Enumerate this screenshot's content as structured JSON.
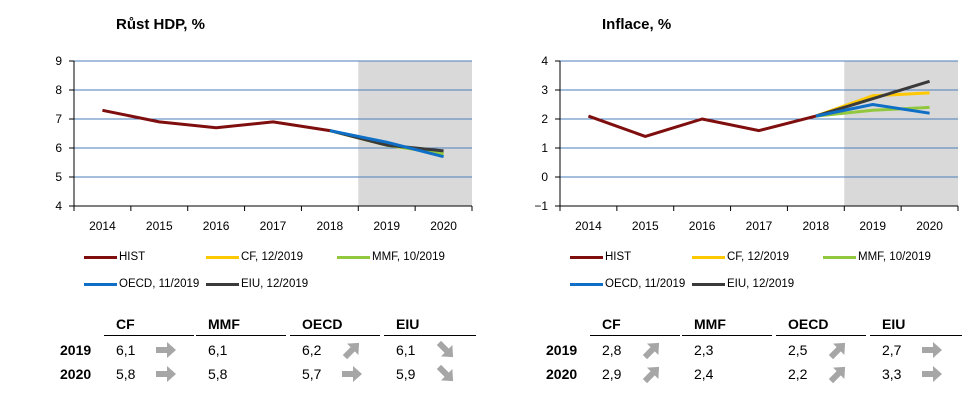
{
  "panels": [
    {
      "title": "Růst HDP, %",
      "table": {
        "columns": [
          "CF",
          "MMF",
          "OECD",
          "EIU"
        ],
        "rows": [
          {
            "label": "2019",
            "values": [
              "6,1",
              "6,1",
              "6,2",
              "6,1"
            ],
            "arrows": [
              "right",
              "none",
              "up",
              "down"
            ]
          },
          {
            "label": "2020",
            "values": [
              "5,8",
              "5,8",
              "5,7",
              "5,9"
            ],
            "arrows": [
              "right",
              "none",
              "right",
              "down"
            ]
          }
        ]
      }
    },
    {
      "title": "Inflace, %",
      "table": {
        "columns": [
          "CF",
          "MMF",
          "OECD",
          "EIU"
        ],
        "rows": [
          {
            "label": "2019",
            "values": [
              "2,8",
              "2,3",
              "2,5",
              "2,7"
            ],
            "arrows": [
              "up",
              "none",
              "up",
              "right"
            ]
          },
          {
            "label": "2020",
            "values": [
              "2,9",
              "2,4",
              "2,2",
              "3,3"
            ],
            "arrows": [
              "up",
              "none",
              "up",
              "right"
            ]
          }
        ]
      }
    }
  ],
  "colors": {
    "HIST": "#7f0e0e",
    "CF": "#ffc800",
    "MMF": "#92c83e",
    "OECD": "#0f6fc6",
    "EIU": "#3a3a3a",
    "forecast_shade": "#d9d9d9",
    "grid": "#4a7ebb",
    "arrow": "#a6a6a6"
  },
  "chart_data": [
    {
      "type": "line",
      "title": "Růst HDP, %",
      "x": [
        "2014",
        "2015",
        "2016",
        "2017",
        "2018",
        "2019",
        "2020"
      ],
      "ylim": [
        4,
        9
      ],
      "yticks": [
        4,
        5,
        6,
        7,
        8,
        9
      ],
      "grid": true,
      "legend": "bottom",
      "forecast_shade": [
        "2019",
        "2020"
      ],
      "series": [
        {
          "name": "HIST",
          "values": [
            7.3,
            6.9,
            6.7,
            6.9,
            6.6,
            null,
            null
          ]
        },
        {
          "name": "CF, 12/2019",
          "values": [
            null,
            null,
            null,
            null,
            6.6,
            6.1,
            5.8
          ]
        },
        {
          "name": "MMF, 10/2019",
          "values": [
            null,
            null,
            null,
            null,
            6.6,
            6.1,
            5.8
          ]
        },
        {
          "name": "OECD, 11/2019",
          "values": [
            null,
            null,
            null,
            null,
            6.6,
            6.2,
            5.7
          ]
        },
        {
          "name": "EIU, 12/2019",
          "values": [
            null,
            null,
            null,
            null,
            6.6,
            6.1,
            5.9
          ]
        }
      ]
    },
    {
      "type": "line",
      "title": "Inflace, %",
      "x": [
        "2014",
        "2015",
        "2016",
        "2017",
        "2018",
        "2019",
        "2020"
      ],
      "ylim": [
        -1,
        4
      ],
      "yticks": [
        -1,
        0,
        1,
        2,
        3,
        4
      ],
      "grid": true,
      "legend": "bottom",
      "forecast_shade": [
        "2019",
        "2020"
      ],
      "series": [
        {
          "name": "HIST",
          "values": [
            2.1,
            1.4,
            2.0,
            1.6,
            2.1,
            null,
            null
          ]
        },
        {
          "name": "CF, 12/2019",
          "values": [
            null,
            null,
            null,
            null,
            2.1,
            2.8,
            2.9
          ]
        },
        {
          "name": "MMF, 10/2019",
          "values": [
            null,
            null,
            null,
            null,
            2.1,
            2.3,
            2.4
          ]
        },
        {
          "name": "OECD, 11/2019",
          "values": [
            null,
            null,
            null,
            null,
            2.1,
            2.5,
            2.2
          ]
        },
        {
          "name": "EIU, 12/2019",
          "values": [
            null,
            null,
            null,
            null,
            2.1,
            2.7,
            3.3
          ]
        }
      ]
    }
  ]
}
